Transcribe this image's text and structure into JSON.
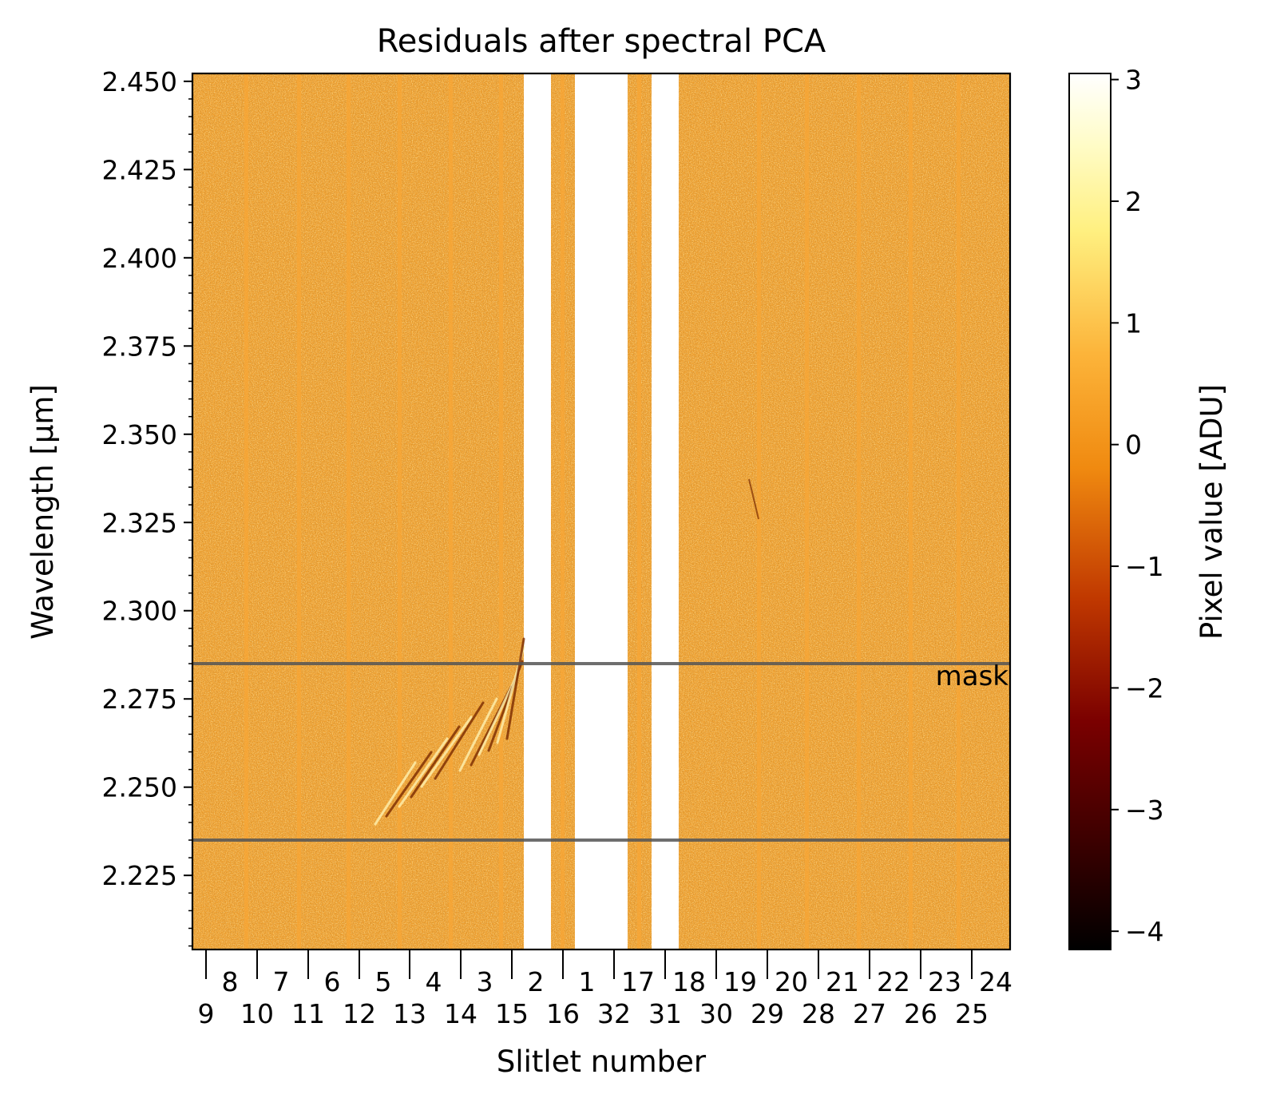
{
  "chart_data": {
    "type": "heatmap",
    "title": "Residuals after spectral PCA",
    "xlabel": "Slitlet number",
    "ylabel": "Wavelength [μm]",
    "ylim": [
      2.204,
      2.452
    ],
    "y_ticks": [
      2.225,
      2.25,
      2.275,
      2.3,
      2.325,
      2.35,
      2.375,
      2.4,
      2.425,
      2.45
    ],
    "y_tick_labels": [
      "2.225",
      "2.250",
      "2.275",
      "2.300",
      "2.325",
      "2.350",
      "2.375",
      "2.400",
      "2.425",
      "2.450"
    ],
    "y_minor_step": 0.005,
    "x_slitlet_labels_top": [
      "8",
      "7",
      "6",
      "5",
      "4",
      "3",
      "2",
      "1",
      "17",
      "18",
      "19",
      "20",
      "21",
      "22",
      "23",
      "24"
    ],
    "x_slitlet_labels_bottom": [
      "9",
      "10",
      "11",
      "12",
      "13",
      "14",
      "15",
      "16",
      "32",
      "31",
      "30",
      "29",
      "28",
      "27",
      "26",
      "25"
    ],
    "masked_columns": [
      {
        "between": [
          "15",
          "16"
        ],
        "value": "no data"
      },
      {
        "between": [
          "16",
          "32"
        ],
        "value": "no data"
      },
      {
        "between": [
          "32",
          "31"
        ],
        "value": "no data"
      }
    ],
    "mask_region": {
      "label": "mask",
      "y_range": [
        2.235,
        2.285
      ]
    },
    "colorbar": {
      "label": "Pixel value [ADU]",
      "range": [
        -4.15,
        3.05
      ],
      "ticks": [
        -4,
        -3,
        -2,
        -1,
        0,
        1,
        2,
        3
      ],
      "tick_labels": [
        "−4",
        "−3",
        "−2",
        "−1",
        "0",
        "1",
        "2",
        "3"
      ],
      "colormap": "afmhot"
    },
    "residual_level": 0.0
  },
  "colors": {
    "background": "#ffffff",
    "residual_mean": "#f0a030",
    "mask_line": "#555555"
  }
}
